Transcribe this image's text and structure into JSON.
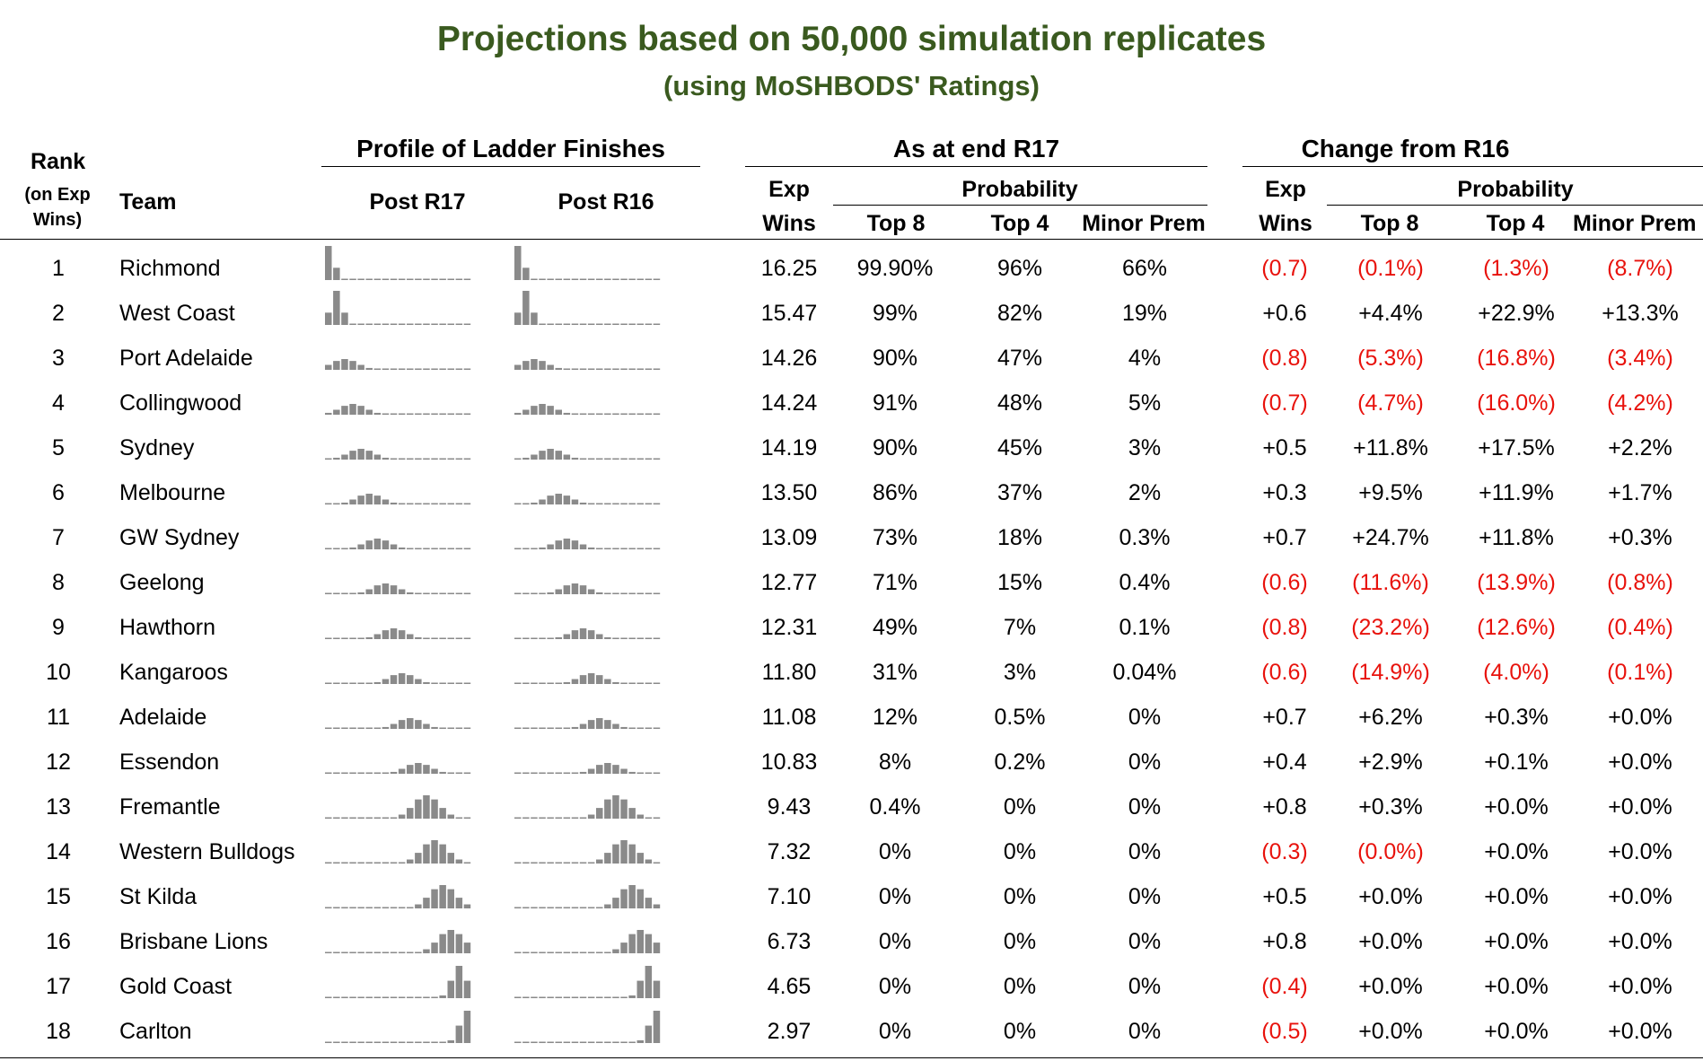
{
  "title": "Projections based on 50,000 simulation replicates",
  "subtitle": "(using MoSHBODS' Ratings)",
  "headers": {
    "rank_l1": "Rank",
    "rank_l2": "(on Exp",
    "rank_l3": "Wins)",
    "team": "Team",
    "profile_group": "Profile of Ladder Finishes",
    "post_r17": "Post R17",
    "post_r16": "Post R16",
    "asat_group": "As at end R17",
    "change_group": "Change from R16",
    "exp": "Exp",
    "wins": "Wins",
    "probability": "Probability",
    "top8": "Top 8",
    "top4": "Top 4",
    "minor_prem": "Minor Prem"
  },
  "colors": {
    "title": "#3a5a1f",
    "negative": "#e8120c",
    "sparkbar": "#8a8a8a"
  },
  "rows": [
    {
      "rank": "1",
      "team": "Richmond",
      "exp": "16.25",
      "top8": "99.90%",
      "top4": "96%",
      "mp": "66%",
      "dexp": "(0.7)",
      "dtop8": "(0.1%)",
      "dtop4": "(1.3%)",
      "dmp": "(8.7%)"
    },
    {
      "rank": "2",
      "team": "West Coast",
      "exp": "15.47",
      "top8": "99%",
      "top4": "82%",
      "mp": "19%",
      "dexp": "+0.6",
      "dtop8": "+4.4%",
      "dtop4": "+22.9%",
      "dmp": "+13.3%"
    },
    {
      "rank": "3",
      "team": "Port Adelaide",
      "exp": "14.26",
      "top8": "90%",
      "top4": "47%",
      "mp": "4%",
      "dexp": "(0.8)",
      "dtop8": "(5.3%)",
      "dtop4": "(16.8%)",
      "dmp": "(3.4%)"
    },
    {
      "rank": "4",
      "team": "Collingwood",
      "exp": "14.24",
      "top8": "91%",
      "top4": "48%",
      "mp": "5%",
      "dexp": "(0.7)",
      "dtop8": "(4.7%)",
      "dtop4": "(16.0%)",
      "dmp": "(4.2%)"
    },
    {
      "rank": "5",
      "team": "Sydney",
      "exp": "14.19",
      "top8": "90%",
      "top4": "45%",
      "mp": "3%",
      "dexp": "+0.5",
      "dtop8": "+11.8%",
      "dtop4": "+17.5%",
      "dmp": "+2.2%"
    },
    {
      "rank": "6",
      "team": "Melbourne",
      "exp": "13.50",
      "top8": "86%",
      "top4": "37%",
      "mp": "2%",
      "dexp": "+0.3",
      "dtop8": "+9.5%",
      "dtop4": "+11.9%",
      "dmp": "+1.7%"
    },
    {
      "rank": "7",
      "team": "GW Sydney",
      "exp": "13.09",
      "top8": "73%",
      "top4": "18%",
      "mp": "0.3%",
      "dexp": "+0.7",
      "dtop8": "+24.7%",
      "dtop4": "+11.8%",
      "dmp": "+0.3%"
    },
    {
      "rank": "8",
      "team": "Geelong",
      "exp": "12.77",
      "top8": "71%",
      "top4": "15%",
      "mp": "0.4%",
      "dexp": "(0.6)",
      "dtop8": "(11.6%)",
      "dtop4": "(13.9%)",
      "dmp": "(0.8%)"
    },
    {
      "rank": "9",
      "team": "Hawthorn",
      "exp": "12.31",
      "top8": "49%",
      "top4": "7%",
      "mp": "0.1%",
      "dexp": "(0.8)",
      "dtop8": "(23.2%)",
      "dtop4": "(12.6%)",
      "dmp": "(0.4%)"
    },
    {
      "rank": "10",
      "team": "Kangaroos",
      "exp": "11.80",
      "top8": "31%",
      "top4": "3%",
      "mp": "0.04%",
      "dexp": "(0.6)",
      "dtop8": "(14.9%)",
      "dtop4": "(4.0%)",
      "dmp": "(0.1%)"
    },
    {
      "rank": "11",
      "team": "Adelaide",
      "exp": "11.08",
      "top8": "12%",
      "top4": "0.5%",
      "mp": "0%",
      "dexp": "+0.7",
      "dtop8": "+6.2%",
      "dtop4": "+0.3%",
      "dmp": "+0.0%"
    },
    {
      "rank": "12",
      "team": "Essendon",
      "exp": "10.83",
      "top8": "8%",
      "top4": "0.2%",
      "mp": "0%",
      "dexp": "+0.4",
      "dtop8": "+2.9%",
      "dtop4": "+0.1%",
      "dmp": "+0.0%"
    },
    {
      "rank": "13",
      "team": "Fremantle",
      "exp": "9.43",
      "top8": "0.4%",
      "top4": "0%",
      "mp": "0%",
      "dexp": "+0.8",
      "dtop8": "+0.3%",
      "dtop4": "+0.0%",
      "dmp": "+0.0%"
    },
    {
      "rank": "14",
      "team": "Western Bulldogs",
      "exp": "7.32",
      "top8": "0%",
      "top4": "0%",
      "mp": "0%",
      "dexp": "(0.3)",
      "dtop8": "(0.0%)",
      "dtop4": "+0.0%",
      "dmp": "+0.0%"
    },
    {
      "rank": "15",
      "team": "St Kilda",
      "exp": "7.10",
      "top8": "0%",
      "top4": "0%",
      "mp": "0%",
      "dexp": "+0.5",
      "dtop8": "+0.0%",
      "dtop4": "+0.0%",
      "dmp": "+0.0%"
    },
    {
      "rank": "16",
      "team": "Brisbane Lions",
      "exp": "6.73",
      "top8": "0%",
      "top4": "0%",
      "mp": "0%",
      "dexp": "+0.8",
      "dtop8": "+0.0%",
      "dtop4": "+0.0%",
      "dmp": "+0.0%"
    },
    {
      "rank": "17",
      "team": "Gold Coast",
      "exp": "4.65",
      "top8": "0%",
      "top4": "0%",
      "mp": "0%",
      "dexp": "(0.4)",
      "dtop8": "+0.0%",
      "dtop4": "+0.0%",
      "dmp": "+0.0%"
    },
    {
      "rank": "18",
      "team": "Carlton",
      "exp": "2.97",
      "top8": "0%",
      "top4": "0%",
      "mp": "0%",
      "dexp": "(0.5)",
      "dtop8": "+0.0%",
      "dtop4": "+0.0%",
      "dmp": "+0.0%"
    }
  ]
}
